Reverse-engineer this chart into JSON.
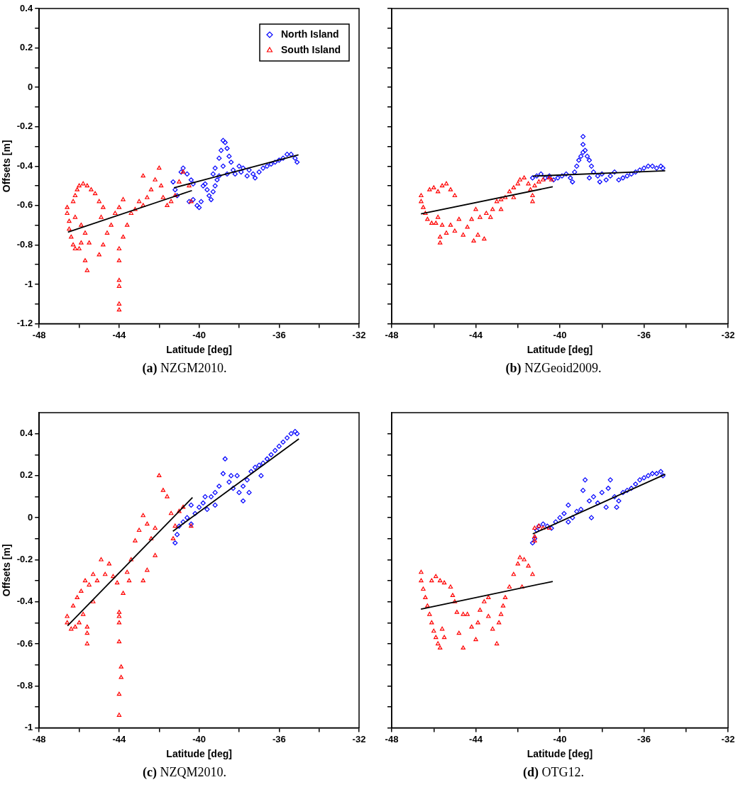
{
  "chart_data": [
    {
      "type": "scatter",
      "title": "(a) NZGM2010.",
      "xlabel": "Latitude [deg]",
      "ylabel": "Offsets [m]",
      "legend": "top right",
      "grid": false,
      "xlim": [
        -48,
        -32
      ],
      "xticks": [
        -48,
        {
          "value": -46,
          "label": null
        },
        -44,
        {
          "value": -42,
          "label": null
        },
        -40,
        {
          "value": -38,
          "label": null
        },
        -36,
        {
          "value": -34,
          "label": null
        },
        -32
      ],
      "ylim": [
        -1.2,
        0.4
      ],
      "yticks": [
        -1.2,
        {
          "value": -1.1,
          "label": null
        },
        -1,
        {
          "value": -0.9,
          "label": null
        },
        -0.8,
        {
          "value": -0.7,
          "label": null
        },
        -0.6,
        {
          "value": -0.5,
          "label": null
        },
        -0.4,
        {
          "value": -0.3,
          "label": null
        },
        -0.2,
        {
          "value": -0.1,
          "label": null
        },
        0,
        {
          "value": 0.1,
          "label": null
        },
        0.2,
        {
          "value": 0.3,
          "label": null
        },
        0.4
      ],
      "series": [
        {
          "name": "North Island",
          "color": "#0000ff",
          "type": "scatter",
          "marker": "diamond",
          "x": [
            -41.3,
            -41.2,
            -41.1,
            -40.9,
            -40.8,
            -40.6,
            -40.4,
            -40.3,
            -40.5,
            -40.3,
            -40.1,
            -40.0,
            -39.9,
            -39.8,
            -39.7,
            -39.6,
            -39.5,
            -39.4,
            -39.3,
            -39.2,
            -39.1,
            -39.3,
            -39.2,
            -39.0,
            -38.9,
            -38.8,
            -38.7,
            -38.6,
            -38.5,
            -38.4,
            -38.3,
            -38.2,
            -38.0,
            -37.9,
            -37.8,
            -37.6,
            -37.5,
            -37.3,
            -37.2,
            -37.0,
            -36.8,
            -36.6,
            -36.4,
            -36.2,
            -36.0,
            -35.8,
            -35.6,
            -35.4,
            -35.2,
            -35.1,
            -38.6,
            -38.8,
            -39.0
          ],
          "values": [
            -0.48,
            -0.52,
            -0.55,
            -0.43,
            -0.41,
            -0.44,
            -0.47,
            -0.49,
            -0.58,
            -0.57,
            -0.6,
            -0.61,
            -0.58,
            -0.5,
            -0.49,
            -0.52,
            -0.55,
            -0.57,
            -0.53,
            -0.5,
            -0.47,
            -0.44,
            -0.41,
            -0.36,
            -0.32,
            -0.27,
            -0.28,
            -0.31,
            -0.35,
            -0.38,
            -0.42,
            -0.44,
            -0.4,
            -0.43,
            -0.41,
            -0.45,
            -0.42,
            -0.44,
            -0.46,
            -0.43,
            -0.41,
            -0.4,
            -0.39,
            -0.38,
            -0.37,
            -0.36,
            -0.34,
            -0.34,
            -0.36,
            -0.38,
            -0.44,
            -0.4,
            -0.45
          ]
        },
        {
          "name": "South Island",
          "color": "#ff0000",
          "type": "scatter",
          "marker": "triangle",
          "x": [
            -46.6,
            -46.6,
            -46.5,
            -46.5,
            -46.4,
            -46.3,
            -46.2,
            -46.0,
            -45.9,
            -46.3,
            -46.2,
            -46.1,
            -46.0,
            -45.8,
            -45.6,
            -45.4,
            -45.2,
            -45.0,
            -44.8,
            -46.2,
            -45.9,
            -45.7,
            -45.5,
            -45.7,
            -45.6,
            -45.0,
            -44.8,
            -44.6,
            -44.4,
            -44.2,
            -44.0,
            -44.0,
            -44.0,
            -44.0,
            -44.0,
            -44.0,
            -44.0,
            -43.8,
            -43.6,
            -43.4,
            -43.2,
            -43.0,
            -42.8,
            -42.6,
            -42.4,
            -42.2,
            -42.0,
            -41.9,
            -41.8,
            -41.6,
            -41.4,
            -41.2,
            -41.0,
            -40.8,
            -40.5,
            -40.4,
            -42.8,
            -44.9,
            -43.8
          ],
          "values": [
            -0.61,
            -0.64,
            -0.68,
            -0.72,
            -0.76,
            -0.8,
            -0.82,
            -0.82,
            -0.79,
            -0.58,
            -0.55,
            -0.52,
            -0.5,
            -0.49,
            -0.5,
            -0.52,
            -0.54,
            -0.58,
            -0.61,
            -0.66,
            -0.7,
            -0.74,
            -0.79,
            -0.88,
            -0.93,
            -0.85,
            -0.8,
            -0.74,
            -0.7,
            -0.64,
            -0.61,
            -0.82,
            -0.88,
            -0.98,
            -1.01,
            -1.1,
            -1.13,
            -0.76,
            -0.7,
            -0.64,
            -0.62,
            -0.58,
            -0.6,
            -0.56,
            -0.52,
            -0.47,
            -0.41,
            -0.5,
            -0.56,
            -0.6,
            -0.58,
            -0.55,
            -0.48,
            -0.43,
            -0.5,
            -0.58,
            -0.45,
            -0.66,
            -0.57
          ]
        },
        {
          "color": "#000000",
          "type": "line",
          "marker": "none",
          "line_style": "solid",
          "x": [
            -46.56,
            -40.36
          ],
          "values": [
            -0.735,
            -0.524
          ]
        },
        {
          "color": "#000000",
          "type": "line",
          "marker": "none",
          "line_style": "solid",
          "x": [
            -41.26,
            -35.03
          ],
          "values": [
            -0.51,
            -0.343
          ]
        }
      ]
    },
    {
      "type": "scatter",
      "title": "(b) NZGeoid2009.",
      "xlabel": "Latitude [deg]",
      "grid": false,
      "tick_labels": "x",
      "xlim": [
        -48,
        -32
      ],
      "xticks": [
        -48,
        {
          "value": -46,
          "label": null
        },
        -44,
        {
          "value": -42,
          "label": null
        },
        -40,
        {
          "value": -38,
          "label": null
        },
        -36,
        {
          "value": -34,
          "label": null
        },
        -32
      ],
      "ylim": [
        -1.2,
        0.4
      ],
      "yticks": [
        -1.2,
        {
          "value": -1.1,
          "label": null
        },
        -1,
        {
          "value": -0.9,
          "label": null
        },
        -0.8,
        {
          "value": -0.7,
          "label": null
        },
        -0.6,
        {
          "value": -0.5,
          "label": null
        },
        -0.4,
        {
          "value": -0.3,
          "label": null
        },
        -0.2,
        {
          "value": -0.1,
          "label": null
        },
        0,
        {
          "value": 0.1,
          "label": null
        },
        0.2,
        {
          "value": 0.3,
          "label": null
        },
        0.4
      ],
      "series": [
        {
          "color": "#0000ff",
          "type": "scatter",
          "marker": "diamond",
          "x": [
            -41.3,
            -41.1,
            -40.9,
            -40.7,
            -40.5,
            -40.3,
            -40.1,
            -39.9,
            -39.7,
            -39.5,
            -39.4,
            -39.3,
            -39.2,
            -39.1,
            -39.0,
            -38.9,
            -38.9,
            -38.9,
            -38.8,
            -38.7,
            -38.6,
            -38.5,
            -38.4,
            -38.2,
            -38.0,
            -37.8,
            -37.6,
            -37.4,
            -37.2,
            -37.0,
            -36.8,
            -36.6,
            -36.4,
            -36.2,
            -36.0,
            -35.8,
            -35.6,
            -35.4,
            -35.2,
            -35.1,
            -38.6,
            -38.1
          ],
          "values": [
            -0.46,
            -0.45,
            -0.44,
            -0.46,
            -0.45,
            -0.47,
            -0.46,
            -0.45,
            -0.44,
            -0.46,
            -0.48,
            -0.43,
            -0.4,
            -0.37,
            -0.35,
            -0.33,
            -0.25,
            -0.29,
            -0.32,
            -0.35,
            -0.37,
            -0.4,
            -0.43,
            -0.45,
            -0.44,
            -0.47,
            -0.45,
            -0.43,
            -0.47,
            -0.46,
            -0.45,
            -0.44,
            -0.43,
            -0.42,
            -0.41,
            -0.4,
            -0.4,
            -0.41,
            -0.4,
            -0.41,
            -0.46,
            -0.48
          ]
        },
        {
          "color": "#ff0000",
          "type": "scatter",
          "marker": "triangle",
          "x": [
            -46.6,
            -46.6,
            -46.5,
            -46.4,
            -46.3,
            -46.1,
            -45.9,
            -46.2,
            -46.0,
            -45.8,
            -45.6,
            -45.4,
            -45.2,
            -45.0,
            -45.8,
            -45.6,
            -45.7,
            -45.7,
            -45.4,
            -45.2,
            -45.0,
            -44.8,
            -44.6,
            -44.4,
            -44.2,
            -44.0,
            -44.1,
            -43.9,
            -43.6,
            -43.8,
            -43.5,
            -43.3,
            -43.2,
            -43.0,
            -42.8,
            -42.6,
            -42.4,
            -42.2,
            -42.0,
            -41.9,
            -41.7,
            -41.5,
            -41.4,
            -41.3,
            -41.3,
            -41.2,
            -41.0,
            -40.8,
            -40.5,
            -40.4,
            -42.2,
            -42.8
          ],
          "values": [
            -0.55,
            -0.58,
            -0.61,
            -0.64,
            -0.67,
            -0.69,
            -0.69,
            -0.52,
            -0.51,
            -0.53,
            -0.5,
            -0.49,
            -0.52,
            -0.55,
            -0.66,
            -0.7,
            -0.76,
            -0.79,
            -0.74,
            -0.7,
            -0.73,
            -0.67,
            -0.75,
            -0.71,
            -0.67,
            -0.62,
            -0.78,
            -0.75,
            -0.77,
            -0.66,
            -0.64,
            -0.66,
            -0.62,
            -0.58,
            -0.57,
            -0.56,
            -0.53,
            -0.51,
            -0.49,
            -0.47,
            -0.46,
            -0.49,
            -0.52,
            -0.55,
            -0.58,
            -0.5,
            -0.48,
            -0.47,
            -0.46,
            -0.47,
            -0.56,
            -0.62
          ]
        },
        {
          "color": "#000000",
          "type": "line",
          "marker": "none",
          "line_style": "solid",
          "x": [
            -46.61,
            -40.34
          ],
          "values": [
            -0.642,
            -0.505
          ]
        },
        {
          "color": "#000000",
          "type": "line",
          "marker": "none",
          "line_style": "solid",
          "x": [
            -41.29,
            -34.99
          ],
          "values": [
            -0.451,
            -0.424
          ]
        }
      ]
    },
    {
      "type": "scatter",
      "title": "(c) NZQM2010.",
      "xlabel": "Latitude [deg]",
      "ylabel": "Offsets [m]",
      "grid": false,
      "xlim": [
        -48,
        -32
      ],
      "xticks": [
        -48,
        {
          "value": -46,
          "label": null
        },
        -44,
        {
          "value": -42,
          "label": null
        },
        -40,
        {
          "value": -38,
          "label": null
        },
        -36,
        {
          "value": -34,
          "label": null
        },
        -32
      ],
      "ylim": [
        -1,
        0.5
      ],
      "yticks": [
        -1,
        {
          "value": -0.9,
          "label": null
        },
        -0.8,
        {
          "value": -0.7,
          "label": null
        },
        -0.6,
        {
          "value": -0.5,
          "label": null
        },
        -0.4,
        {
          "value": -0.3,
          "label": null
        },
        -0.2,
        {
          "value": -0.1,
          "label": null
        },
        0,
        {
          "value": 0.1,
          "label": null
        },
        0.2,
        {
          "value": 0.3,
          "label": null
        },
        0.4
      ],
      "series": [
        {
          "color": "#0000ff",
          "type": "scatter",
          "marker": "diamond",
          "x": [
            -41.2,
            -41.1,
            -41.0,
            -40.8,
            -40.6,
            -40.4,
            -40.2,
            -40.0,
            -39.8,
            -39.6,
            -39.4,
            -39.2,
            -39.0,
            -39.2,
            -38.8,
            -38.7,
            -38.5,
            -38.3,
            -38.1,
            -38.0,
            -37.8,
            -37.6,
            -37.4,
            -37.2,
            -37.0,
            -36.8,
            -36.6,
            -36.4,
            -36.2,
            -36.0,
            -35.8,
            -35.6,
            -35.4,
            -35.2,
            -35.1,
            -37.8,
            -38.4,
            -39.7,
            -40.4,
            -37.5,
            -36.9
          ],
          "values": [
            -0.12,
            -0.08,
            -0.04,
            -0.02,
            0.0,
            -0.03,
            0.02,
            0.05,
            0.07,
            0.04,
            0.1,
            0.12,
            0.15,
            0.06,
            0.21,
            0.28,
            0.17,
            0.14,
            0.2,
            0.12,
            0.08,
            0.18,
            0.22,
            0.24,
            0.25,
            0.26,
            0.28,
            0.3,
            0.32,
            0.34,
            0.36,
            0.38,
            0.4,
            0.41,
            0.4,
            0.15,
            0.2,
            0.1,
            0.06,
            0.12,
            0.2
          ]
        },
        {
          "color": "#ff0000",
          "type": "scatter",
          "marker": "triangle",
          "x": [
            -46.6,
            -46.6,
            -46.4,
            -46.2,
            -46.0,
            -45.8,
            -45.6,
            -45.6,
            -45.6,
            -46.3,
            -46.1,
            -45.9,
            -45.7,
            -45.5,
            -45.3,
            -45.1,
            -44.9,
            -44.7,
            -44.5,
            -44.3,
            -44.1,
            -44.0,
            -44.0,
            -44.0,
            -44.0,
            -43.9,
            -43.9,
            -44.0,
            -44.0,
            -43.8,
            -43.6,
            -43.4,
            -43.2,
            -43.0,
            -42.8,
            -42.6,
            -42.8,
            -42.6,
            -42.4,
            -42.2,
            -42.0,
            -41.8,
            -41.6,
            -41.4,
            -41.2,
            -41.3,
            -41.0,
            -40.8,
            -40.4,
            -42.2,
            -43.5,
            -45.3
          ],
          "values": [
            -0.47,
            -0.5,
            -0.53,
            -0.52,
            -0.5,
            -0.46,
            -0.52,
            -0.55,
            -0.6,
            -0.42,
            -0.38,
            -0.35,
            -0.3,
            -0.32,
            -0.27,
            -0.3,
            -0.2,
            -0.27,
            -0.22,
            -0.28,
            -0.31,
            -0.45,
            -0.47,
            -0.5,
            -0.59,
            -0.71,
            -0.76,
            -0.84,
            -0.94,
            -0.36,
            -0.26,
            -0.2,
            -0.11,
            -0.06,
            0.01,
            -0.03,
            -0.3,
            -0.25,
            -0.1,
            -0.05,
            0.2,
            0.13,
            0.1,
            0.02,
            -0.04,
            -0.1,
            0.03,
            0.05,
            -0.04,
            -0.18,
            -0.3,
            -0.4
          ]
        },
        {
          "color": "#000000",
          "type": "line",
          "marker": "none",
          "line_style": "solid",
          "x": [
            -46.58,
            -40.33
          ],
          "values": [
            -0.514,
            0.096
          ]
        },
        {
          "color": "#000000",
          "type": "line",
          "marker": "none",
          "line_style": "solid",
          "x": [
            -41.31,
            -35.01
          ],
          "values": [
            -0.064,
            0.375
          ]
        }
      ]
    },
    {
      "type": "scatter",
      "title": "(d) OTG12.",
      "xlabel": "Latitude [deg]",
      "grid": false,
      "tick_labels": "x",
      "xlim": [
        -48,
        -32
      ],
      "xticks": [
        -48,
        {
          "value": -46,
          "label": null
        },
        -44,
        {
          "value": -42,
          "label": null
        },
        -40,
        {
          "value": -38,
          "label": null
        },
        -36,
        {
          "value": -34,
          "label": null
        },
        -32
      ],
      "ylim": [
        -1,
        0.5
      ],
      "yticks": [
        -1,
        {
          "value": -0.9,
          "label": null
        },
        -0.8,
        {
          "value": -0.7,
          "label": null
        },
        -0.6,
        {
          "value": -0.5,
          "label": null
        },
        -0.4,
        {
          "value": -0.3,
          "label": null
        },
        -0.2,
        {
          "value": -0.1,
          "label": null
        },
        0,
        {
          "value": 0.1,
          "label": null
        },
        0.2,
        {
          "value": 0.3,
          "label": null
        },
        0.4
      ],
      "series": [
        {
          "color": "#0000ff",
          "type": "scatter",
          "marker": "diamond",
          "x": [
            -41.3,
            -41.2,
            -41.1,
            -41.0,
            -40.8,
            -40.6,
            -40.4,
            -40.2,
            -40.0,
            -39.8,
            -39.6,
            -39.4,
            -39.2,
            -39.0,
            -38.9,
            -38.8,
            -38.6,
            -38.4,
            -38.2,
            -38.0,
            -37.8,
            -37.7,
            -37.6,
            -37.4,
            -37.2,
            -37.0,
            -36.8,
            -36.6,
            -36.4,
            -36.2,
            -36.0,
            -35.8,
            -35.6,
            -35.4,
            -35.2,
            -35.1,
            -38.5,
            -37.3,
            -39.6
          ],
          "values": [
            -0.12,
            -0.1,
            -0.06,
            -0.04,
            -0.03,
            -0.04,
            -0.05,
            -0.02,
            0.0,
            0.02,
            -0.02,
            0.0,
            0.03,
            0.04,
            0.13,
            0.18,
            0.08,
            0.1,
            0.07,
            0.12,
            0.05,
            0.14,
            0.18,
            0.1,
            0.08,
            0.12,
            0.13,
            0.14,
            0.16,
            0.18,
            0.19,
            0.2,
            0.21,
            0.21,
            0.22,
            0.2,
            0.0,
            0.05,
            0.06
          ]
        },
        {
          "color": "#ff0000",
          "type": "scatter",
          "marker": "triangle",
          "x": [
            -41.2,
            -41.0,
            -40.8,
            -40.5,
            -41.2,
            -41.2,
            -46.6,
            -46.6,
            -46.5,
            -46.4,
            -46.3,
            -46.2,
            -46.1,
            -46.0,
            -45.9,
            -45.8,
            -45.7,
            -46.1,
            -45.9,
            -45.7,
            -45.5,
            -45.2,
            -45.1,
            -45.0,
            -45.6,
            -45.5,
            -44.9,
            -44.8,
            -44.6,
            -44.4,
            -44.2,
            -44.0,
            -43.9,
            -43.8,
            -43.6,
            -43.4,
            -43.2,
            -43.0,
            -42.9,
            -42.8,
            -42.7,
            -42.6,
            -42.4,
            -42.2,
            -42.0,
            -41.9,
            -41.7,
            -41.5,
            -41.3,
            -41.8,
            -43.4,
            -44.6
          ],
          "values": [
            -0.05,
            -0.04,
            -0.05,
            -0.05,
            -0.09,
            -0.11,
            -0.26,
            -0.3,
            -0.34,
            -0.38,
            -0.42,
            -0.46,
            -0.5,
            -0.54,
            -0.57,
            -0.6,
            -0.62,
            -0.3,
            -0.28,
            -0.3,
            -0.31,
            -0.33,
            -0.37,
            -0.4,
            -0.53,
            -0.57,
            -0.45,
            -0.55,
            -0.62,
            -0.46,
            -0.52,
            -0.58,
            -0.5,
            -0.44,
            -0.4,
            -0.47,
            -0.53,
            -0.6,
            -0.5,
            -0.46,
            -0.42,
            -0.38,
            -0.33,
            -0.27,
            -0.22,
            -0.19,
            -0.2,
            -0.23,
            -0.27,
            -0.33,
            -0.38,
            -0.46
          ]
        },
        {
          "color": "#000000",
          "type": "line",
          "marker": "none",
          "line_style": "solid",
          "x": [
            -46.61,
            -40.34
          ],
          "values": [
            -0.435,
            -0.303
          ]
        },
        {
          "color": "#000000",
          "type": "line",
          "marker": "none",
          "line_style": "solid",
          "x": [
            -41.29,
            -34.99
          ],
          "values": [
            -0.077,
            0.207
          ]
        }
      ]
    }
  ]
}
